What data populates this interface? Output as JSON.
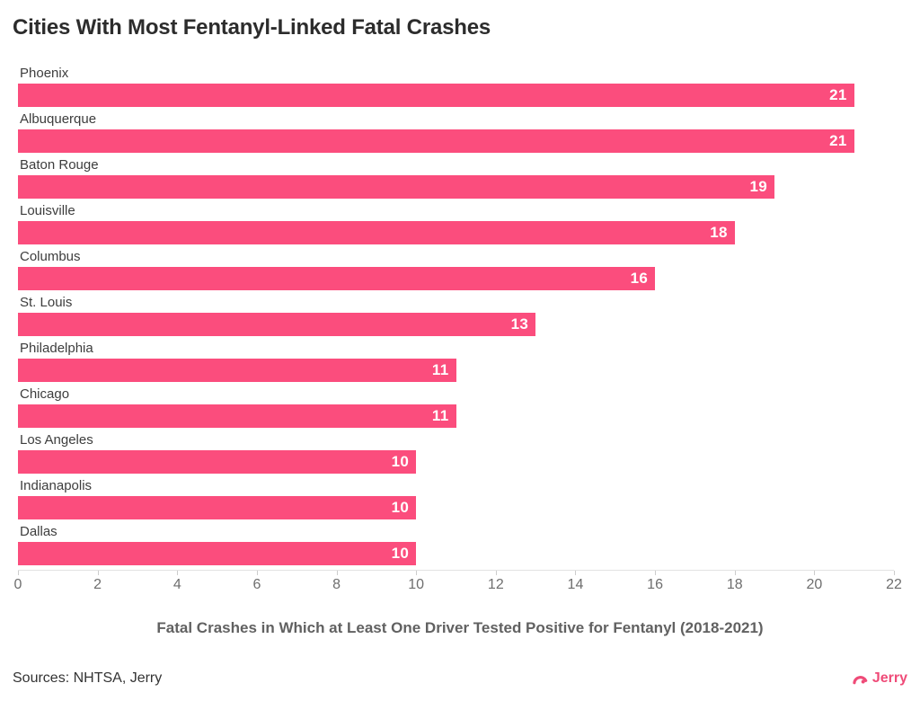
{
  "page": {
    "sources": "Sources: NHTSA, Jerry",
    "logo": {
      "label": "Jerry",
      "color": "#ef4b78",
      "icon": "jerry-arc-icon"
    }
  },
  "chart_data": {
    "type": "bar",
    "orientation": "horizontal",
    "title": "Cities With Most Fentanyl-Linked Fatal Crashes",
    "categories": [
      "Phoenix",
      "Albuquerque",
      "Baton Rouge",
      "Louisville",
      "Columbus",
      "St. Louis",
      "Philadelphia",
      "Chicago",
      "Los Angeles",
      "Indianapolis",
      "Dallas"
    ],
    "values": [
      21,
      21,
      19,
      18,
      16,
      13,
      11,
      11,
      10,
      10,
      10
    ],
    "xlabel": "Fatal Crashes in Which at Least One Driver Tested Positive for Fentanyl (2018-2021)",
    "ylabel": "",
    "xlim": [
      0,
      22
    ],
    "xticks": [
      0,
      2,
      4,
      6,
      8,
      10,
      12,
      14,
      16,
      18,
      20,
      22
    ],
    "bar_color": "#fb4d7d",
    "value_label_color": "#ffffff",
    "grid": false,
    "legend": false,
    "value_labels_position": "inside-end"
  }
}
